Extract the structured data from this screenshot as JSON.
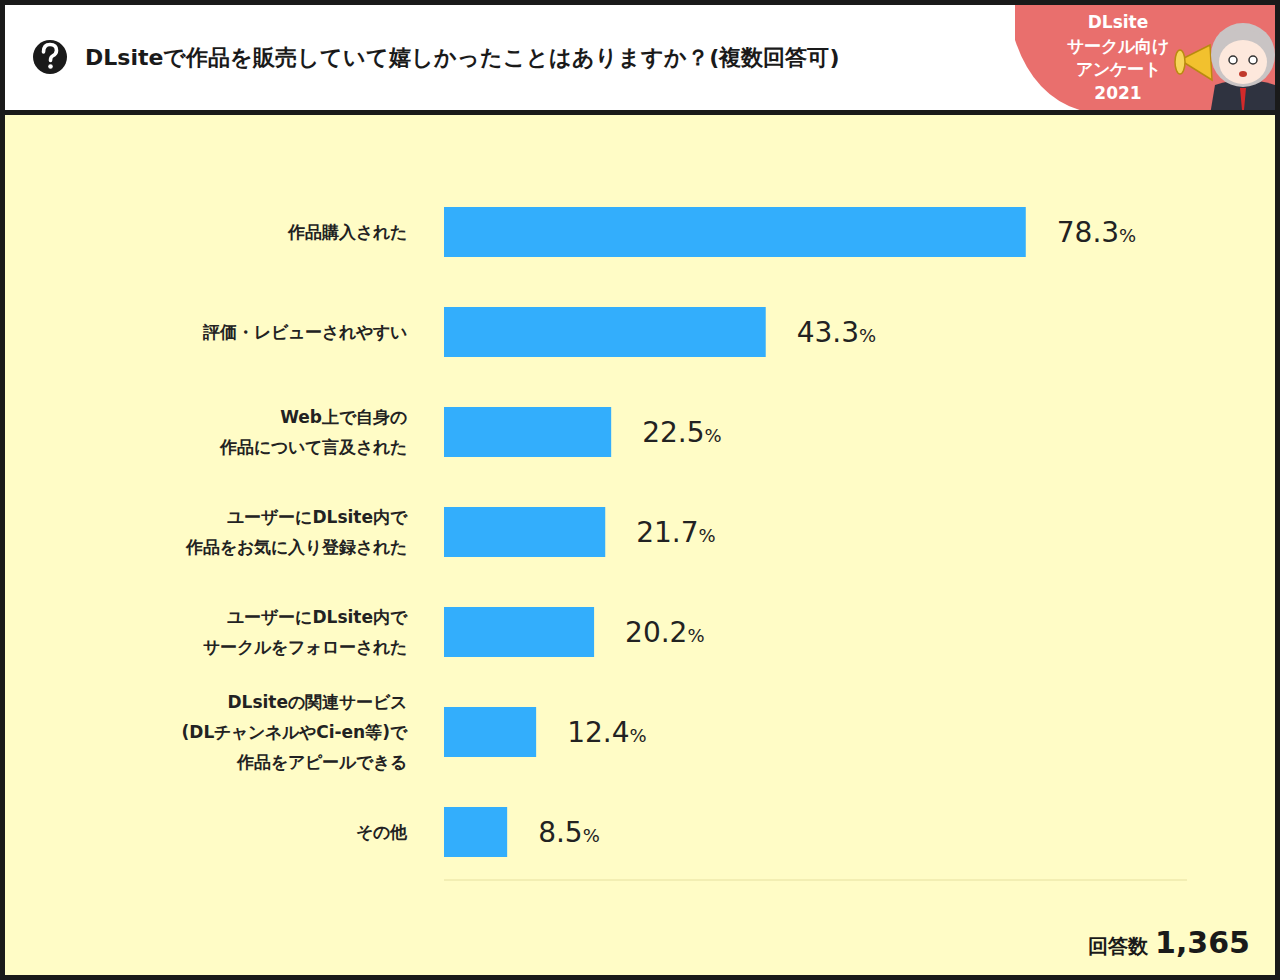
{
  "chart_data": {
    "type": "bar",
    "title": "DLsiteで作品を販売していて嬉しかったことはありますか？(複数回答可)",
    "annotations": [
      "DLsite\nサークル向け\nアンケート\n2021",
      "回答数 1,365"
    ],
    "categories": [
      "作品購入された",
      "評価・レビューされやすい",
      "Web上で自身の\n作品について言及された",
      "ユーザーにDLsite内で\n作品をお気に入り登録された",
      "ユーザーにDLsite内で\nサークルをフォローされた",
      "DLsiteの関連サービス\n(DLチャンネルやCi-en等)で\n作品をアピールできる",
      "その他"
    ],
    "values": [
      78.3,
      43.3,
      22.5,
      21.7,
      20.2,
      12.4,
      8.5
    ],
    "value_labels": [
      "78.3%",
      "43.3%",
      "22.5%",
      "21.7%",
      "20.2%",
      "12.4%",
      "8.5%"
    ],
    "color": "#33aefc",
    "orientation": "horizontal",
    "xlim": [
      0,
      100
    ],
    "data_labels": true,
    "tick_labels": false,
    "grid": false
  }
}
